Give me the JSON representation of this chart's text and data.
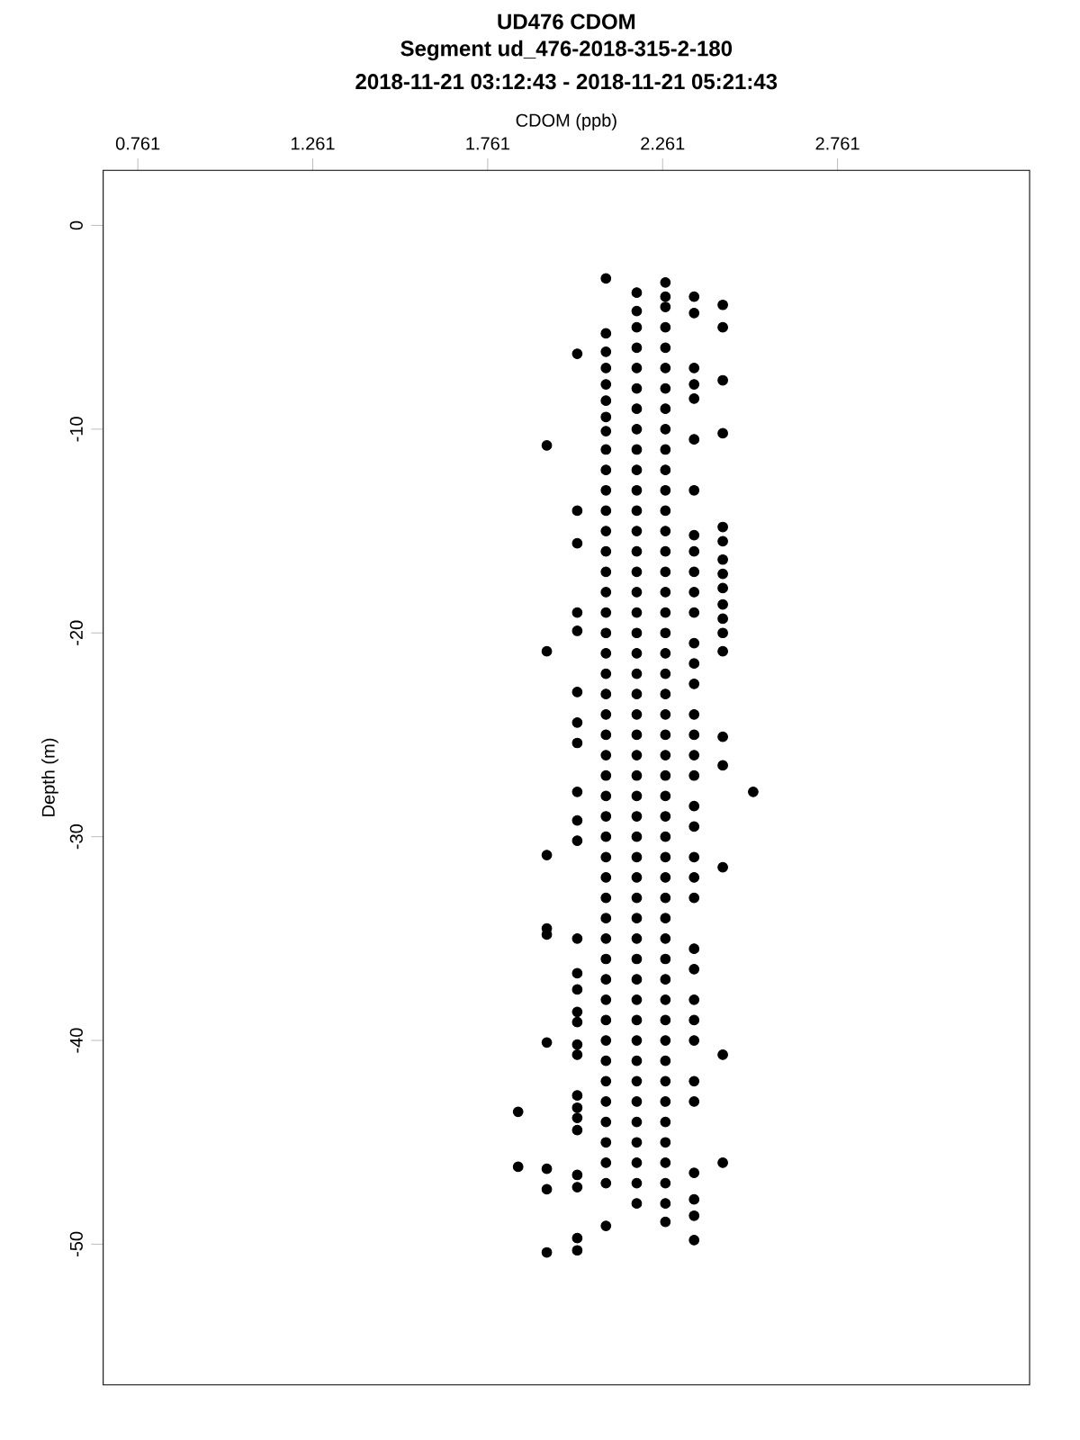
{
  "chart_data": {
    "type": "scatter",
    "title": "UD476 CDOM",
    "subtitle": "Segment ud_476-2018-315-2-180",
    "annotations": [
      "2018-11-21 03:12:43 - 2018-11-21 05:21:43"
    ],
    "xlabel": "CDOM (ppb)",
    "ylabel": "Depth (m)",
    "xlim": [
      0.662,
      3.31
    ],
    "ylim": [
      -56.9,
      2.7
    ],
    "xticks": [
      0.761,
      1.261,
      1.761,
      2.261,
      2.761
    ],
    "yticks": [
      0,
      -10,
      -20,
      -30,
      -40,
      -50
    ],
    "marker": "circle",
    "grid": false,
    "series": [
      {
        "color": "#000000",
        "x": [
          1.848,
          1.848
        ],
        "values": [
          -43.5,
          -46.2
        ]
      },
      {
        "color": "#000000",
        "x": [
          1.93,
          1.93,
          1.93,
          1.93,
          1.93,
          1.93,
          1.93,
          1.93,
          1.93
        ],
        "values": [
          -10.8,
          -20.9,
          -30.9,
          -34.5,
          -34.8,
          -40.1,
          -46.3,
          -47.3,
          -50.4
        ]
      },
      {
        "color": "#000000",
        "x": [
          2.017,
          2.017,
          2.017,
          2.017,
          2.017,
          2.017,
          2.017,
          2.017,
          2.017,
          2.017,
          2.017,
          2.017,
          2.017,
          2.017,
          2.017,
          2.017,
          2.017,
          2.017,
          2.017,
          2.017,
          2.017,
          2.017,
          2.017,
          2.017,
          2.017,
          2.017
        ],
        "values": [
          -6.3,
          -14.0,
          -15.6,
          -19.0,
          -19.9,
          -22.9,
          -24.4,
          -25.4,
          -27.8,
          -29.2,
          -30.2,
          -35.0,
          -36.7,
          -37.5,
          -38.6,
          -39.1,
          -40.2,
          -40.7,
          -42.7,
          -43.3,
          -43.8,
          -44.4,
          -46.6,
          -47.2,
          -49.7,
          -50.3
        ]
      },
      {
        "color": "#000000",
        "x": [
          2.099,
          2.099,
          2.099,
          2.099,
          2.099,
          2.099,
          2.099,
          2.099,
          2.099,
          2.099,
          2.099,
          2.099,
          2.099,
          2.099,
          2.099,
          2.099,
          2.099,
          2.099,
          2.099,
          2.099,
          2.099,
          2.099,
          2.099,
          2.099,
          2.099,
          2.099,
          2.099,
          2.099,
          2.099,
          2.099,
          2.099,
          2.099,
          2.099,
          2.099,
          2.099,
          2.099,
          2.099,
          2.099,
          2.099,
          2.099,
          2.099,
          2.099,
          2.099,
          2.099,
          2.099,
          2.099
        ],
        "values": [
          -2.6,
          -5.3,
          -6.2,
          -7,
          -7.8,
          -8.6,
          -9.4,
          -10.1,
          -11,
          -12,
          -13,
          -14,
          -15,
          -16,
          -17,
          -18,
          -19,
          -20,
          -21,
          -22,
          -23,
          -24,
          -25,
          -26,
          -27,
          -28,
          -29,
          -30,
          -31,
          -32,
          -33,
          -34,
          -35,
          -36,
          -37,
          -38,
          -39,
          -40,
          -41,
          -42,
          -43,
          -44,
          -45,
          -46,
          -47,
          -49.1
        ]
      },
      {
        "color": "#000000",
        "x": [
          2.187,
          2.187,
          2.187,
          2.187,
          2.187,
          2.187,
          2.187,
          2.187,
          2.187,
          2.187,
          2.187,
          2.187,
          2.187,
          2.187,
          2.187,
          2.187,
          2.187,
          2.187,
          2.187,
          2.187,
          2.187,
          2.187,
          2.187,
          2.187,
          2.187,
          2.187,
          2.187,
          2.187,
          2.187,
          2.187,
          2.187,
          2.187,
          2.187,
          2.187,
          2.187,
          2.187,
          2.187,
          2.187,
          2.187,
          2.187,
          2.187,
          2.187,
          2.187,
          2.187,
          2.187,
          2.187
        ],
        "values": [
          -3.3,
          -4.2,
          -5,
          -6,
          -7,
          -8,
          -9,
          -10,
          -11,
          -12,
          -13,
          -14,
          -15,
          -16,
          -17,
          -18,
          -19,
          -20,
          -21,
          -22,
          -23,
          -24,
          -25,
          -26,
          -27,
          -28,
          -29,
          -30,
          -31,
          -32,
          -33,
          -34,
          -35,
          -36,
          -37,
          -38,
          -39,
          -40,
          -41,
          -42,
          -43,
          -44,
          -45,
          -46,
          -47,
          -48
        ]
      },
      {
        "color": "#000000",
        "x": [
          2.269,
          2.269,
          2.269,
          2.269,
          2.269,
          2.269,
          2.269,
          2.269,
          2.269,
          2.269,
          2.269,
          2.269,
          2.269,
          2.269,
          2.269,
          2.269,
          2.269,
          2.269,
          2.269,
          2.269,
          2.269,
          2.269,
          2.269,
          2.269,
          2.269,
          2.269,
          2.269,
          2.269,
          2.269,
          2.269,
          2.269,
          2.269,
          2.269,
          2.269,
          2.269,
          2.269,
          2.269,
          2.269,
          2.269,
          2.269,
          2.269,
          2.269,
          2.269,
          2.269,
          2.269,
          2.269,
          2.269,
          2.269
        ],
        "values": [
          -2.8,
          -3.5,
          -4,
          -5,
          -6,
          -7,
          -8,
          -9,
          -10,
          -11,
          -12,
          -13,
          -14,
          -15,
          -16,
          -17,
          -18,
          -19,
          -20,
          -21,
          -22,
          -23,
          -24,
          -25,
          -26,
          -27,
          -28,
          -29,
          -30,
          -31,
          -32,
          -33,
          -34,
          -35,
          -36,
          -37,
          -38,
          -39,
          -40,
          -41,
          -42,
          -43,
          -44,
          -45,
          -46,
          -47,
          -48,
          -48.9
        ]
      },
      {
        "color": "#000000",
        "x": [
          2.351,
          2.351,
          2.351,
          2.351,
          2.351,
          2.351,
          2.351,
          2.351,
          2.351,
          2.351,
          2.351,
          2.351,
          2.351,
          2.351,
          2.351,
          2.351,
          2.351,
          2.351,
          2.351,
          2.351,
          2.351,
          2.351,
          2.351,
          2.351,
          2.351,
          2.351,
          2.351,
          2.351,
          2.351,
          2.351,
          2.351,
          2.351,
          2.351,
          2.351,
          2.351
        ],
        "values": [
          -3.5,
          -4.3,
          -7.0,
          -7.8,
          -8.5,
          -10.5,
          -13.0,
          -15.2,
          -16.0,
          -17.0,
          -18.0,
          -19.0,
          -20.5,
          -21.5,
          -22.5,
          -24.0,
          -25.0,
          -26.0,
          -27.0,
          -28.5,
          -29.5,
          -31.0,
          -32.0,
          -33.0,
          -35.5,
          -36.5,
          -38.0,
          -39.0,
          -40.0,
          -42.0,
          -43.0,
          -46.5,
          -47.8,
          -48.6,
          -49.8
        ]
      },
      {
        "color": "#000000",
        "x": [
          2.433,
          2.433,
          2.433,
          2.433,
          2.433,
          2.433,
          2.433,
          2.433,
          2.433,
          2.433,
          2.433,
          2.433,
          2.433,
          2.433,
          2.433,
          2.433,
          2.433,
          2.433
        ],
        "values": [
          -3.9,
          -5.0,
          -7.6,
          -10.2,
          -14.8,
          -15.5,
          -16.4,
          -17.1,
          -17.8,
          -18.6,
          -19.3,
          -20.0,
          -20.9,
          -25.1,
          -26.5,
          -31.5,
          -40.7,
          -46.0
        ]
      },
      {
        "color": "#000000",
        "x": [
          2.52
        ],
        "values": [
          -27.8
        ]
      }
    ]
  }
}
